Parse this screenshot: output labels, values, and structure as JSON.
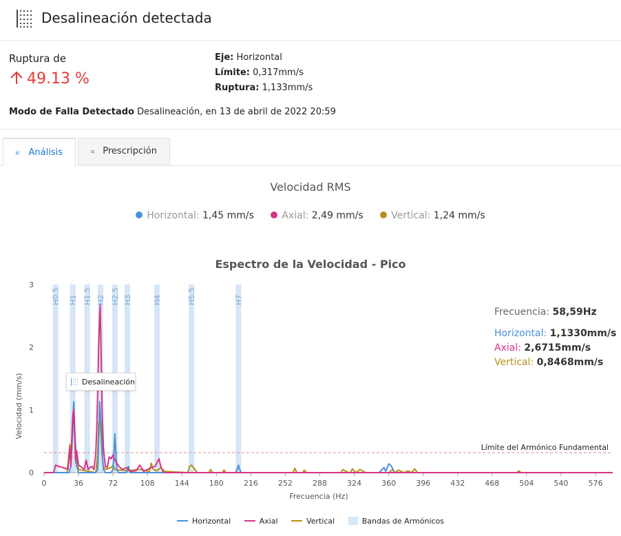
{
  "header": {
    "title": "Desalineación detectada",
    "icon": "dotted-grid-icon"
  },
  "summary": {
    "rupture_label": "Ruptura de",
    "rupture_value": "49.13 %",
    "axis_label": "Eje:",
    "axis_value": "Horizontal",
    "limit_label": "Límite:",
    "limit_value": "0,317mm/s",
    "rupture2_label": "Ruptura:",
    "rupture2_value": "1,133mm/s",
    "mode_label": "Modo de Falla Detectado",
    "mode_value": "Desalineación, en 13 de abril de 2022 20:59"
  },
  "tabs": [
    {
      "label": "Análisis",
      "icon": "chart-icon",
      "active": true
    },
    {
      "label": "Prescripción",
      "icon": "list-icon",
      "active": false
    }
  ],
  "rms": {
    "title": "Velocidad RMS",
    "items": [
      {
        "name": "Horizontal:",
        "value": "1,45 mm/s",
        "color": "#4a90d9"
      },
      {
        "name": "Axial:",
        "value": "2,49 mm/s",
        "color": "#d63384"
      },
      {
        "name": "Vertical:",
        "value": "1,24 mm/s",
        "color": "#b8901a"
      }
    ]
  },
  "readout": {
    "freq_label": "Frecuencia:",
    "freq_value": "58,59Hz",
    "h_label": "Horizontal:",
    "h_value": "1,1330mm/s",
    "a_label": "Axial:",
    "a_value": "2,6715mm/s",
    "v_label": "Vertical:",
    "v_value": "0,8468mm/s"
  },
  "tooltip": {
    "label": "Desalineación"
  },
  "legend": {
    "h": "Horizontal",
    "a": "Axial",
    "v": "Vertical",
    "bands": "Bandas de Armónicos"
  },
  "colors": {
    "horizontal": "#4a90d9",
    "axial": "#d63384",
    "vertical": "#b8901a",
    "band": "#d6e6f7",
    "limit": "#e08a8a",
    "alert": "#e53935"
  },
  "chart_data": {
    "type": "line",
    "title": "Espectro de la Velocidad - Pico",
    "xlabel": "Frecuencia (Hz)",
    "ylabel": "Velocidad (mm/s)",
    "xlim": [
      0,
      594
    ],
    "ylim": [
      0,
      3
    ],
    "x_ticks": [
      0,
      36,
      72,
      108,
      144,
      180,
      216,
      252,
      288,
      324,
      360,
      396,
      432,
      468,
      504,
      540,
      576
    ],
    "y_ticks": [
      0,
      1,
      2,
      3
    ],
    "limit_line": {
      "value": 0.317,
      "label": "Límite del Armónico Fundamental"
    },
    "bands": [
      {
        "label": "H0.5",
        "x": 12
      },
      {
        "label": "H1",
        "x": 30
      },
      {
        "label": "H1.5",
        "x": 45
      },
      {
        "label": "H2",
        "x": 59
      },
      {
        "label": "H2.5",
        "x": 74
      },
      {
        "label": "H3",
        "x": 87
      },
      {
        "label": "H4",
        "x": 118
      },
      {
        "label": "H5.5",
        "x": 154
      },
      {
        "label": "H7",
        "x": 203
      }
    ],
    "series": [
      {
        "name": "Horizontal",
        "x": [
          0,
          20,
          26,
          28,
          30,
          31,
          32,
          34,
          36,
          50,
          54,
          56,
          57,
          58,
          59,
          60,
          61,
          62,
          64,
          70,
          72,
          73,
          74,
          75,
          76,
          78,
          86,
          88,
          90,
          100,
          200,
          202,
          203,
          204,
          206,
          350,
          355,
          357,
          360,
          363,
          366,
          594
        ],
        "values": [
          0,
          0,
          0,
          0.1,
          0.7,
          1.13,
          0.7,
          0.1,
          0,
          0,
          0,
          0.05,
          0.5,
          1.13,
          0.9,
          0.7,
          0.3,
          0.05,
          0,
          0,
          0.05,
          0.3,
          0.62,
          0.3,
          0.05,
          0,
          0,
          0.1,
          0,
          0,
          0,
          0.06,
          0.12,
          0.06,
          0,
          0,
          0.08,
          0.02,
          0.14,
          0.1,
          0,
          0
        ]
      },
      {
        "name": "Axial",
        "x": [
          0,
          10,
          12,
          15,
          20,
          25,
          27,
          28,
          29,
          30,
          31,
          32,
          33,
          34,
          36,
          38,
          42,
          44,
          46,
          48,
          50,
          52,
          54,
          55,
          56,
          57,
          58,
          58.6,
          59.5,
          60.5,
          62,
          64,
          66,
          68,
          70,
          72,
          74,
          76,
          78,
          82,
          86,
          90,
          96,
          100,
          104,
          108,
          112,
          116,
          120,
          122,
          124,
          126,
          130,
          594
        ],
        "values": [
          0,
          0,
          0.12,
          0.1,
          0.08,
          0.05,
          0.4,
          0.1,
          0.5,
          0.9,
          1.0,
          0.6,
          0.2,
          0.35,
          0.12,
          0.1,
          0.05,
          0.2,
          0.05,
          0.08,
          0.1,
          0.05,
          0.3,
          0.7,
          1.3,
          2.0,
          2.5,
          2.67,
          2.0,
          1.1,
          0.4,
          0.1,
          0.08,
          0.25,
          0.22,
          0.28,
          0.2,
          0.15,
          0.1,
          0.05,
          0.08,
          0.02,
          0.03,
          0.12,
          0.02,
          0.05,
          0.08,
          0.1,
          0.22,
          0.1,
          0.02,
          0,
          0,
          0
        ]
      },
      {
        "name": "Vertical",
        "x": [
          0,
          24,
          26,
          27,
          28,
          29,
          30,
          31,
          32,
          33,
          34,
          36,
          54,
          56,
          57,
          58,
          58.6,
          59.5,
          60.5,
          62,
          64,
          70,
          72,
          74,
          86,
          100,
          110,
          112,
          114,
          118,
          122,
          126,
          150,
          152,
          154,
          156,
          160,
          172,
          174,
          176,
          186,
          188,
          190,
          260,
          262,
          264,
          270,
          272,
          274,
          300,
          310,
          312,
          318,
          320,
          322,
          326,
          330,
          336,
          360,
          364,
          366,
          370,
          376,
          380,
          384,
          387,
          390,
          494,
          496,
          498,
          594
        ],
        "values": [
          0,
          0,
          0.3,
          0.45,
          0.2,
          0.55,
          0.9,
          1.05,
          0.6,
          0.15,
          0.3,
          0.05,
          0,
          0.3,
          0.8,
          0.84,
          0.8,
          0.6,
          0.3,
          0.1,
          0.05,
          0.08,
          0.12,
          0.05,
          0.03,
          0.05,
          0.02,
          0.15,
          0.05,
          0.03,
          0.08,
          0.02,
          0,
          0.1,
          0.12,
          0.08,
          0,
          0,
          0.05,
          0,
          0,
          0.04,
          0,
          0,
          0.07,
          0,
          0,
          0.04,
          0,
          0,
          0,
          0.05,
          0,
          0,
          0.06,
          0,
          0.05,
          0,
          0,
          0.05,
          0,
          0.04,
          0,
          0.03,
          0,
          0.06,
          0,
          0,
          0.03,
          0,
          0
        ]
      }
    ]
  }
}
